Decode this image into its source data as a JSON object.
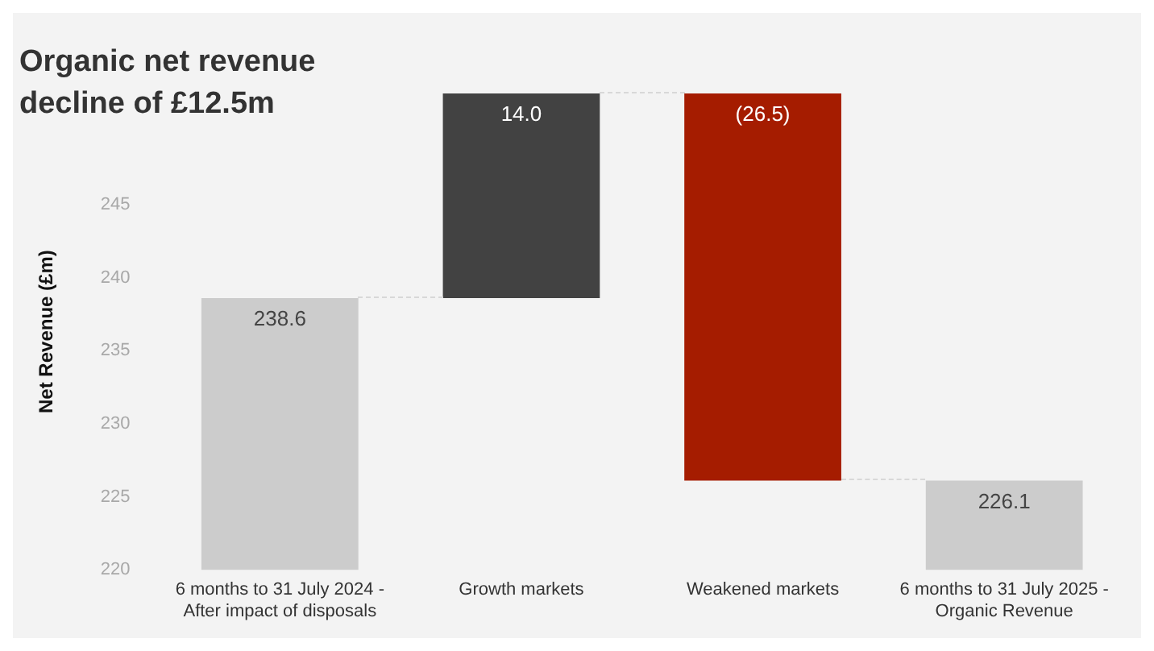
{
  "chart_data": {
    "type": "bar",
    "title": "Organic net revenue decline of £12.5m",
    "ylabel": "Net Revenue (£m)",
    "categories": [
      "6 months to 31 July 2024 - After impact of disposals",
      "Growth markets",
      "Weakened markets",
      "6 months to 31 July 2025 - Organic Revenue"
    ],
    "values": [
      238.6,
      14.0,
      -26.5,
      226.1
    ],
    "base": [
      null,
      238.6,
      252.6,
      null
    ],
    "colors": [
      "#cccccc",
      "#424242",
      "#a51c00",
      "#cccccc"
    ],
    "value_labels": [
      "238.6",
      "14.0",
      "(26.5)",
      "226.1"
    ],
    "ylim": [
      220,
      252.6
    ],
    "yticks": [
      220,
      225,
      230,
      235,
      240,
      245
    ],
    "grid": false,
    "legend": false
  }
}
